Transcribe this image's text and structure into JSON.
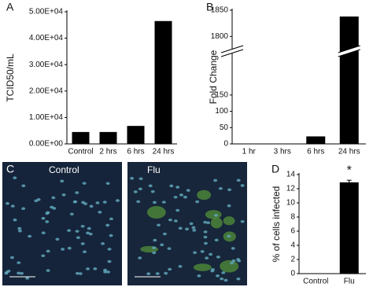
{
  "chart_data": [
    {
      "type": "bar",
      "panel_label": "A",
      "y_label": "TCID50/mL",
      "categories": [
        "Control",
        "2 hrs",
        "6 hrs",
        "24 hrs"
      ],
      "values": [
        4500,
        4500,
        6800,
        46500
      ],
      "color": "#000000",
      "ylim": [
        0,
        50000
      ],
      "yticks": [
        {
          "value": 0,
          "label": "0.00E+00"
        },
        {
          "value": 10000,
          "label": "1.00E+04"
        },
        {
          "value": 20000,
          "label": "2.00E+04"
        },
        {
          "value": 30000,
          "label": "3.00E+04"
        },
        {
          "value": 40000,
          "label": "4.00E+04"
        },
        {
          "value": 50000,
          "label": "5.00E+04"
        }
      ]
    },
    {
      "type": "bar",
      "panel_label": "B",
      "y_label": "Fold Change",
      "categories": [
        "1 hr",
        "3 hrs",
        "6 hrs",
        "24 hrs"
      ],
      "values": [
        0,
        1,
        23,
        1838
      ],
      "color": "#000000",
      "ylim": [
        0,
        1850
      ],
      "axis_break": [
        280,
        1775
      ],
      "yticks": [
        0,
        50,
        100,
        150,
        1800,
        1850
      ]
    },
    {
      "type": "bar",
      "panel_label": "D",
      "y_label": "% of cells infected",
      "categories": [
        "Control",
        "Flu"
      ],
      "values": [
        0,
        12.9
      ],
      "errors": [
        0,
        0.3
      ],
      "color": "#000000",
      "ylim": [
        0,
        14
      ],
      "yticks": [
        0,
        2,
        4,
        6,
        8,
        10,
        12,
        14
      ],
      "annotations": [
        "*"
      ]
    }
  ],
  "images": {
    "panel_label": "C",
    "labels": [
      "Control",
      "Flu"
    ]
  }
}
